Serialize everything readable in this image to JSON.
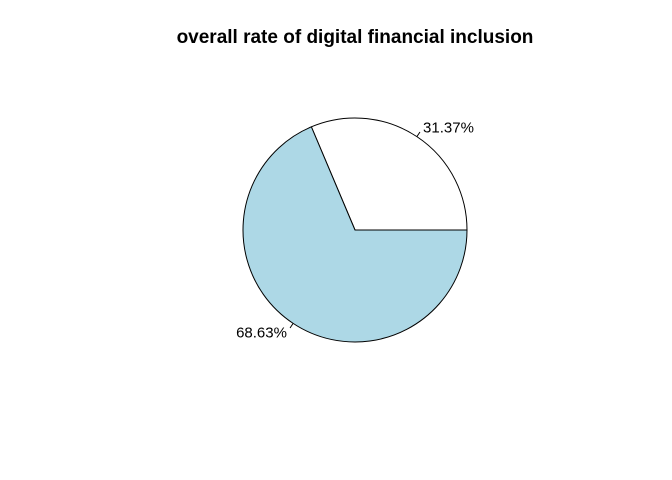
{
  "chart_data": {
    "type": "pie",
    "title": "overall rate of digital financial inclusion",
    "slices": [
      {
        "label": "31.37%",
        "value": 31.37,
        "color": "#FFFFFF"
      },
      {
        "label": "68.63%",
        "value": 68.63,
        "color": "#ADD8E6"
      }
    ],
    "start_angle_deg": 0,
    "direction": "counterclockwise",
    "outline_color": "#000000",
    "legend": "none"
  }
}
